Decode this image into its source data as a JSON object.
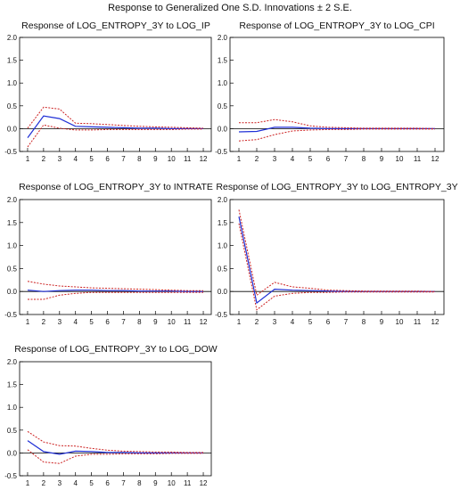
{
  "figure_title": "Response to Generalized One S.D. Innovations ± 2 S.E.",
  "colors": {
    "response": "#1f2fd6",
    "band": "#cc2222",
    "zero": "#000000",
    "frame": "#000000"
  },
  "chart_data": [
    {
      "type": "line",
      "title": "Response of LOG_ENTROPY_3Y to LOG_IP",
      "x": [
        1,
        2,
        3,
        4,
        5,
        6,
        7,
        8,
        9,
        10,
        11,
        12
      ],
      "ylim": [
        -0.5,
        2.0
      ],
      "yticks": [
        "-0.5",
        "0.0",
        "0.5",
        "1.0",
        "1.5",
        "2.0"
      ],
      "xticks": [
        "1",
        "2",
        "3",
        "4",
        "5",
        "6",
        "7",
        "8",
        "9",
        "10",
        "11",
        "12"
      ],
      "series": [
        {
          "role": "response",
          "values": [
            -0.2,
            0.28,
            0.22,
            0.05,
            0.04,
            0.03,
            0.02,
            0.01,
            0.01,
            0.0,
            0.0,
            0.0
          ]
        },
        {
          "role": "upper",
          "values": [
            0.01,
            0.47,
            0.43,
            0.12,
            0.11,
            0.09,
            0.07,
            0.05,
            0.04,
            0.03,
            0.02,
            0.01
          ]
        },
        {
          "role": "lower",
          "values": [
            -0.4,
            0.08,
            0.01,
            -0.03,
            -0.03,
            -0.02,
            -0.02,
            -0.02,
            -0.02,
            -0.02,
            -0.01,
            -0.01
          ]
        }
      ]
    },
    {
      "type": "line",
      "title": "Response of LOG_ENTROPY_3Y to LOG_CPI",
      "x": [
        1,
        2,
        3,
        4,
        5,
        6,
        7,
        8,
        9,
        10,
        11,
        12
      ],
      "ylim": [
        -0.5,
        2.0
      ],
      "yticks": [
        "-0.5",
        "0.0",
        "0.5",
        "1.0",
        "1.5",
        "2.0"
      ],
      "xticks": [
        "1",
        "2",
        "3",
        "4",
        "5",
        "6",
        "7",
        "8",
        "9",
        "10",
        "11",
        "12"
      ],
      "series": [
        {
          "role": "response",
          "values": [
            -0.07,
            -0.06,
            0.03,
            0.03,
            0.01,
            0.0,
            0.0,
            0.0,
            0.0,
            0.0,
            0.0,
            0.0
          ]
        },
        {
          "role": "upper",
          "values": [
            0.13,
            0.13,
            0.2,
            0.15,
            0.06,
            0.03,
            0.02,
            0.01,
            0.01,
            0.01,
            0.01,
            0.0
          ]
        },
        {
          "role": "lower",
          "values": [
            -0.27,
            -0.24,
            -0.13,
            -0.05,
            -0.03,
            -0.02,
            -0.02,
            -0.01,
            -0.01,
            -0.01,
            -0.01,
            -0.01
          ]
        }
      ]
    },
    {
      "type": "line",
      "title": "Response of LOG_ENTROPY_3Y to INTRATE",
      "x": [
        1,
        2,
        3,
        4,
        5,
        6,
        7,
        8,
        9,
        10,
        11,
        12
      ],
      "ylim": [
        -0.5,
        2.0
      ],
      "yticks": [
        "-0.5",
        "0.0",
        "0.5",
        "1.0",
        "1.5",
        "2.0"
      ],
      "xticks": [
        "1",
        "2",
        "3",
        "4",
        "5",
        "6",
        "7",
        "8",
        "9",
        "10",
        "11",
        "12"
      ],
      "series": [
        {
          "role": "response",
          "values": [
            0.03,
            0.0,
            0.02,
            0.03,
            0.03,
            0.02,
            0.02,
            0.01,
            0.01,
            0.01,
            0.0,
            0.0
          ]
        },
        {
          "role": "upper",
          "values": [
            0.22,
            0.16,
            0.12,
            0.1,
            0.08,
            0.07,
            0.06,
            0.05,
            0.04,
            0.03,
            0.02,
            0.02
          ]
        },
        {
          "role": "lower",
          "values": [
            -0.17,
            -0.17,
            -0.08,
            -0.04,
            -0.02,
            -0.02,
            -0.02,
            -0.02,
            -0.02,
            -0.02,
            -0.02,
            -0.02
          ]
        }
      ]
    },
    {
      "type": "line",
      "title": "Response of LOG_ENTROPY_3Y to LOG_ENTROPY_3Y",
      "x": [
        1,
        2,
        3,
        4,
        5,
        6,
        7,
        8,
        9,
        10,
        11,
        12
      ],
      "ylim": [
        -0.5,
        2.0
      ],
      "yticks": [
        "-0.5",
        "0.0",
        "0.5",
        "1.0",
        "1.5",
        "2.0"
      ],
      "xticks": [
        "1",
        "2",
        "3",
        "4",
        "5",
        "6",
        "7",
        "8",
        "9",
        "10",
        "11",
        "12"
      ],
      "series": [
        {
          "role": "response",
          "values": [
            1.63,
            -0.25,
            0.05,
            0.03,
            0.02,
            0.01,
            0.0,
            0.0,
            0.0,
            0.0,
            0.0,
            0.0
          ]
        },
        {
          "role": "upper",
          "values": [
            1.78,
            -0.08,
            0.2,
            0.1,
            0.07,
            0.03,
            0.02,
            0.01,
            0.01,
            0.01,
            0.01,
            0.0
          ]
        },
        {
          "role": "lower",
          "values": [
            1.48,
            -0.4,
            -0.1,
            -0.04,
            -0.02,
            -0.02,
            -0.01,
            -0.01,
            -0.01,
            -0.01,
            -0.01,
            -0.01
          ]
        }
      ]
    },
    {
      "type": "line",
      "title": "Response of LOG_ENTROPY_3Y to LOG_DOW",
      "x": [
        1,
        2,
        3,
        4,
        5,
        6,
        7,
        8,
        9,
        10,
        11,
        12
      ],
      "ylim": [
        -0.5,
        2.0
      ],
      "yticks": [
        "-0.5",
        "0.0",
        "0.5",
        "1.0",
        "1.5",
        "2.0"
      ],
      "xticks": [
        "1",
        "2",
        "3",
        "4",
        "5",
        "6",
        "7",
        "8",
        "9",
        "10",
        "11",
        "12"
      ],
      "series": [
        {
          "role": "response",
          "values": [
            0.27,
            0.03,
            -0.03,
            0.04,
            0.03,
            0.01,
            0.01,
            0.0,
            0.0,
            0.0,
            0.0,
            0.0
          ]
        },
        {
          "role": "upper",
          "values": [
            0.47,
            0.24,
            0.16,
            0.15,
            0.1,
            0.06,
            0.04,
            0.03,
            0.02,
            0.02,
            0.01,
            0.01
          ]
        },
        {
          "role": "lower",
          "values": [
            0.07,
            -0.2,
            -0.23,
            -0.07,
            -0.03,
            -0.03,
            -0.02,
            -0.02,
            -0.02,
            -0.01,
            -0.01,
            -0.01
          ]
        }
      ]
    }
  ]
}
